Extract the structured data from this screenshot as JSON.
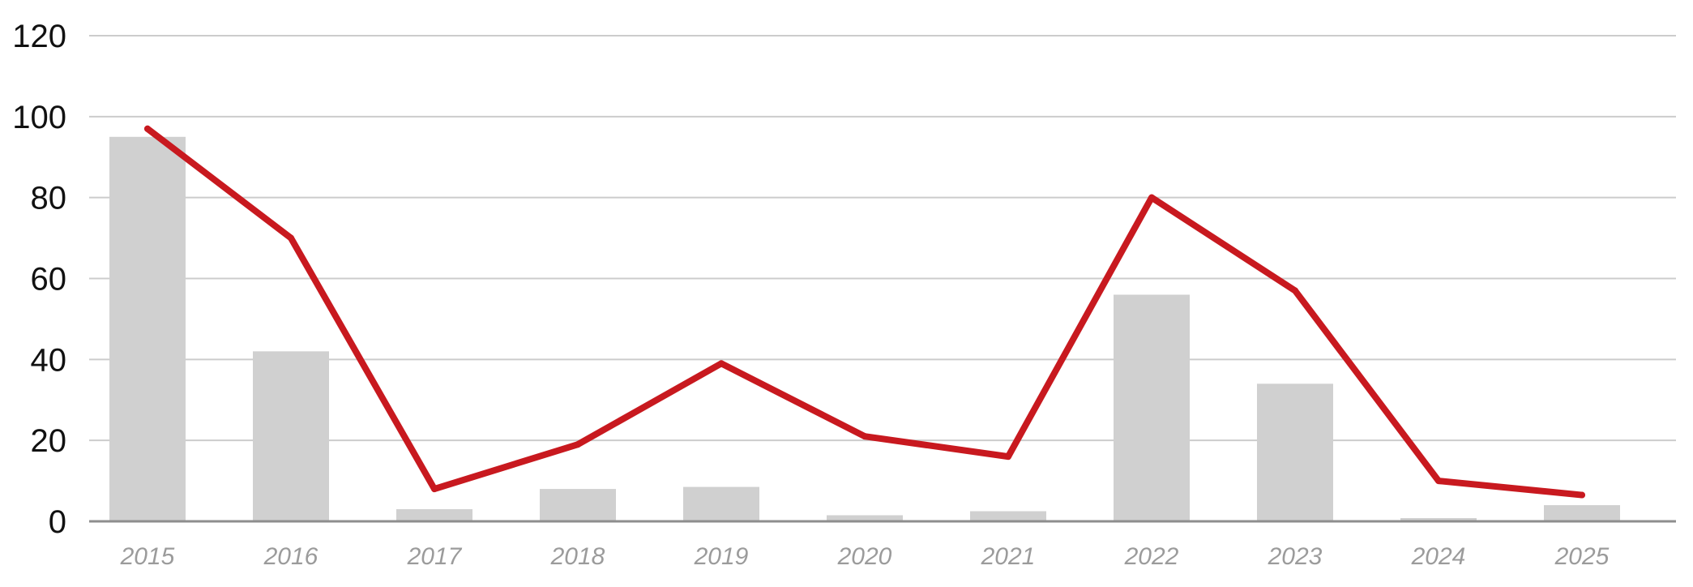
{
  "chart_data": {
    "type": "bar",
    "title": "",
    "xlabel": "",
    "ylabel": "",
    "ylim": [
      0,
      120
    ],
    "yticks": [
      0,
      20,
      40,
      60,
      80,
      100,
      120
    ],
    "categories": [
      "2015",
      "2016",
      "2017",
      "2018",
      "2019",
      "2020",
      "2021",
      "2022",
      "2023",
      "2024",
      "2025"
    ],
    "series": [
      {
        "type": "bar",
        "values": [
          95,
          42,
          3,
          8,
          8.5,
          1.5,
          2.5,
          56,
          34,
          0.8,
          4
        ]
      },
      {
        "type": "line",
        "values": [
          97,
          70,
          8,
          19,
          39,
          21,
          16,
          80,
          57,
          10,
          6.5
        ]
      }
    ],
    "grid": true,
    "legend": "none",
    "colors": {
      "bar": "#d0d0d0",
      "line": "#c8191f",
      "grid": "#cccccc",
      "axis": "#8e8e8e",
      "ytick": "#111111",
      "xtick": "#9b9b9b"
    }
  }
}
